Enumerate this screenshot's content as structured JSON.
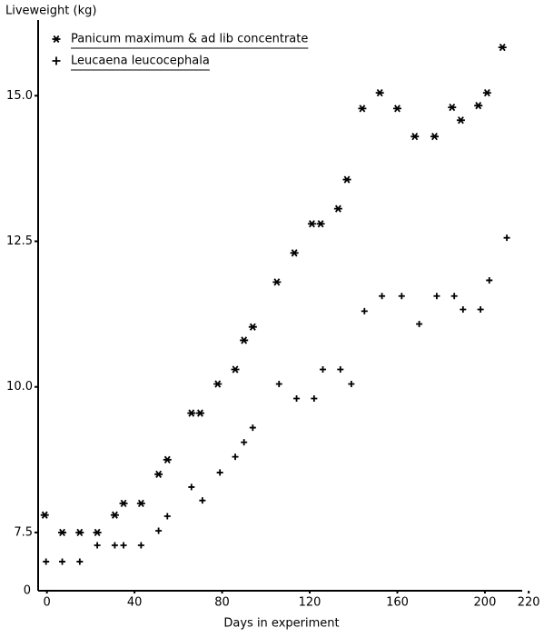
{
  "chart_data": {
    "type": "scatter",
    "y_axis_label": "Liveweight (kg)",
    "x_axis_label": "Days in experiment",
    "y_break_label": "0",
    "xlim": [
      -4,
      222
    ],
    "xticks": [
      0,
      40,
      80,
      120,
      160,
      200,
      220
    ],
    "ylim": [
      6.5,
      16.3
    ],
    "yticks": [
      7.5,
      {
        "value": 10,
        "label": "10.0"
      },
      12.5,
      {
        "value": 15,
        "label": "15.0"
      }
    ],
    "series": [
      {
        "name": "Panicum maximum & ad lib concentrate",
        "marker": "*",
        "color": "#000000",
        "x": [
          -1,
          7,
          15,
          23,
          31,
          35,
          43,
          51,
          55,
          66,
          70,
          78,
          86,
          90,
          94,
          105,
          113,
          121,
          125,
          133,
          137,
          144,
          152,
          160,
          168,
          177,
          185,
          189,
          197,
          201,
          208
        ],
        "values": [
          7.8,
          7.5,
          7.5,
          7.5,
          7.8,
          8.0,
          8.0,
          8.5,
          8.75,
          9.55,
          9.55,
          10.05,
          10.3,
          10.8,
          11.03,
          11.8,
          12.3,
          12.8,
          12.8,
          13.06,
          13.56,
          14.78,
          15.05,
          14.78,
          14.3,
          14.3,
          14.8,
          14.58,
          14.83,
          15.05,
          15.83
        ]
      },
      {
        "name": "Leucaena leucocephala",
        "marker": "+",
        "color": "#000000",
        "x": [
          -0.4,
          7,
          15,
          23,
          31,
          35,
          43,
          51,
          55,
          66,
          71,
          79,
          86,
          90,
          94,
          106,
          114,
          122,
          126,
          134,
          139,
          145,
          153,
          162,
          170,
          178,
          186,
          190,
          198,
          202,
          210
        ],
        "values": [
          7.0,
          7.0,
          7.0,
          7.28,
          7.28,
          7.28,
          7.28,
          7.53,
          7.78,
          8.28,
          8.05,
          8.53,
          8.8,
          9.05,
          9.3,
          10.05,
          9.8,
          9.8,
          10.3,
          10.3,
          10.05,
          11.3,
          11.56,
          11.56,
          11.08,
          11.56,
          11.56,
          11.33,
          11.33,
          11.83,
          12.56
        ]
      }
    ]
  }
}
